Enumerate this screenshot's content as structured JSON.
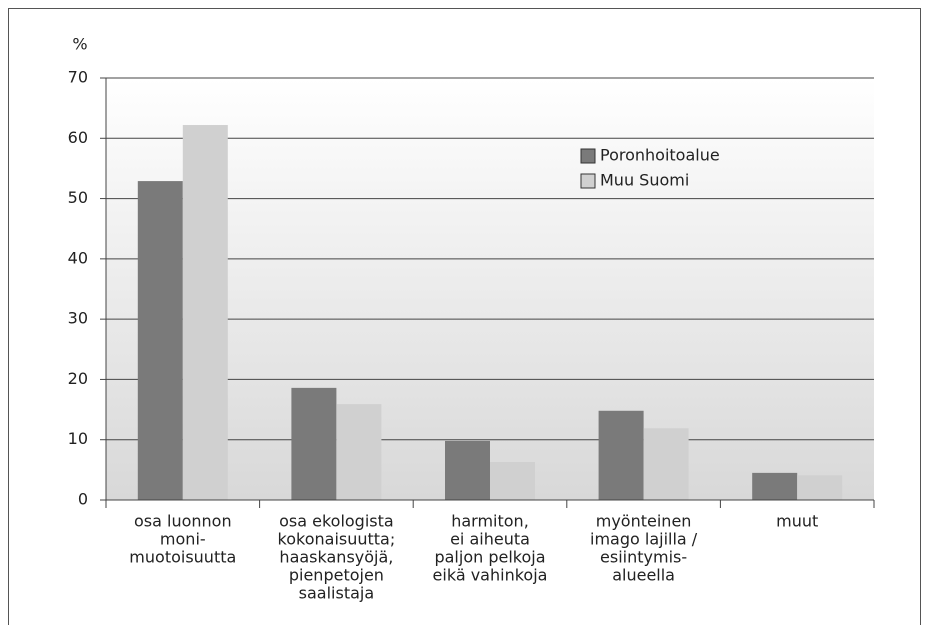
{
  "chart_data": {
    "type": "bar",
    "y_label": "%",
    "categories": [
      [
        "osa luonnon",
        "moni-",
        "muotoisuutta"
      ],
      [
        "osa ekologista",
        "kokonaisuutta;",
        "haaskansyöjä,",
        "pienpetojen",
        "saalistaja"
      ],
      [
        "harmiton,",
        "ei aiheuta",
        "paljon pelkoja",
        "eikä vahinkoja"
      ],
      [
        "myönteinen",
        "imago lajilla /",
        "esiintymis-",
        "alueella"
      ],
      [
        "muut"
      ]
    ],
    "series": [
      {
        "name": "Poronhoitoalue",
        "color": "#7a7a7a",
        "values": [
          52.9,
          18.6,
          9.8,
          14.8,
          4.5
        ]
      },
      {
        "name": "Muu Suomi",
        "color": "#d0d0d0",
        "values": [
          62.2,
          15.9,
          6.3,
          11.9,
          4.1
        ]
      }
    ],
    "ylim": [
      0,
      70
    ],
    "yticks": [
      0,
      10,
      20,
      30,
      40,
      50,
      60,
      70
    ],
    "grid": true,
    "legend": "upper right"
  }
}
